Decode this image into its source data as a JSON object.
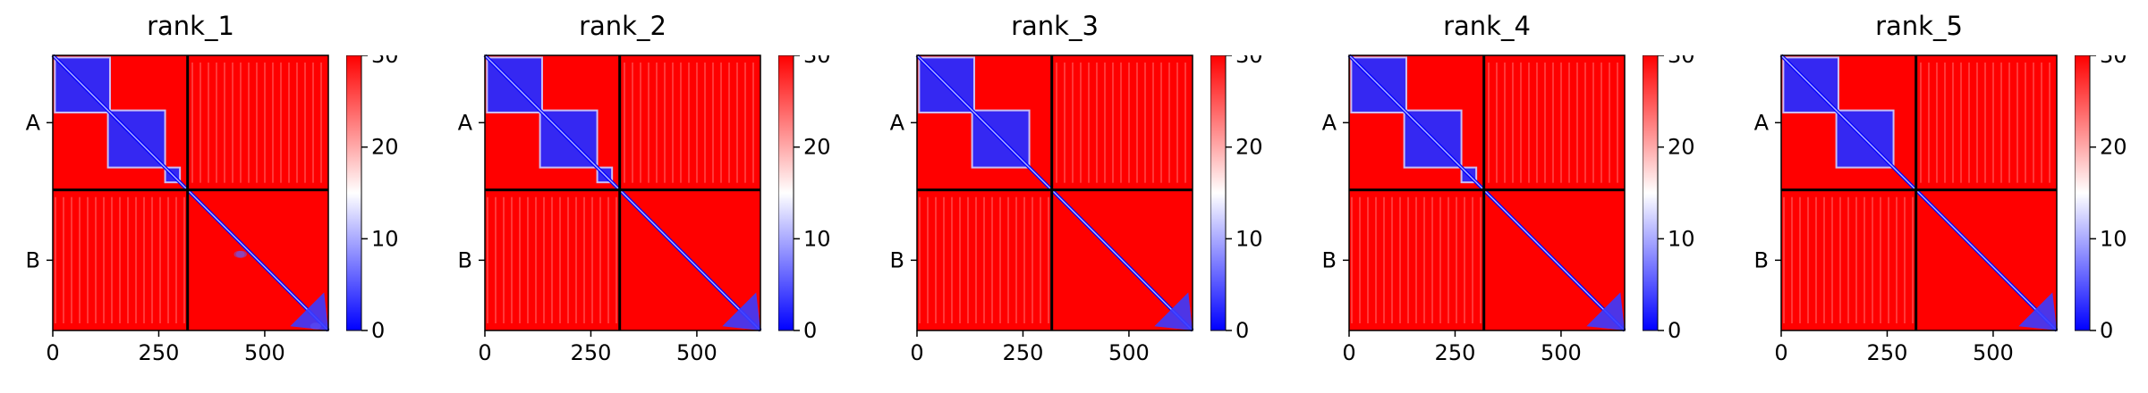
{
  "chart_data": [
    {
      "type": "heatmap",
      "title": "rank_1",
      "x_ticks": [
        0,
        250,
        500
      ],
      "y_tick_labels": [
        "A",
        "B"
      ],
      "chain_boundary": 318,
      "length": 650,
      "colorbar": {
        "min": 0,
        "max": 30,
        "ticks": [
          0,
          10,
          20,
          30
        ]
      },
      "colormap": [
        "#0000ff",
        "#ffffff",
        "#ff0000"
      ],
      "confident_blocks": [
        [
          5,
          135
        ],
        [
          130,
          265
        ],
        [
          265,
          300
        ]
      ],
      "offdiag_blobs": [
        [
          430,
          450,
          0.45
        ],
        [
          600,
          640,
          0.35
        ],
        [
          430,
          460,
          0.5
        ]
      ]
    },
    {
      "type": "heatmap",
      "title": "rank_2",
      "x_ticks": [
        0,
        250,
        500
      ],
      "y_tick_labels": [
        "A",
        "B"
      ],
      "chain_boundary": 318,
      "length": 650,
      "colorbar": {
        "min": 0,
        "max": 30,
        "ticks": [
          0,
          10,
          20,
          30
        ]
      },
      "colormap": [
        "#0000ff",
        "#ffffff",
        "#ff0000"
      ],
      "confident_blocks": [
        [
          5,
          135
        ],
        [
          130,
          265
        ],
        [
          265,
          300
        ]
      ],
      "offdiag_blobs": []
    },
    {
      "type": "heatmap",
      "title": "rank_3",
      "x_ticks": [
        0,
        250,
        500
      ],
      "y_tick_labels": [
        "A",
        "B"
      ],
      "chain_boundary": 318,
      "length": 650,
      "colorbar": {
        "min": 0,
        "max": 30,
        "ticks": [
          0,
          10,
          20,
          30
        ]
      },
      "colormap": [
        "#0000ff",
        "#ffffff",
        "#ff0000"
      ],
      "confident_blocks": [
        [
          5,
          135
        ],
        [
          130,
          265
        ]
      ],
      "offdiag_blobs": []
    },
    {
      "type": "heatmap",
      "title": "rank_4",
      "x_ticks": [
        0,
        250,
        500
      ],
      "y_tick_labels": [
        "A",
        "B"
      ],
      "chain_boundary": 318,
      "length": 650,
      "colorbar": {
        "min": 0,
        "max": 30,
        "ticks": [
          0,
          10,
          20,
          30
        ]
      },
      "colormap": [
        "#0000ff",
        "#ffffff",
        "#ff0000"
      ],
      "confident_blocks": [
        [
          5,
          135
        ],
        [
          130,
          265
        ],
        [
          265,
          300
        ]
      ],
      "offdiag_blobs": []
    },
    {
      "type": "heatmap",
      "title": "rank_5",
      "x_ticks": [
        0,
        250,
        500
      ],
      "y_tick_labels": [
        "A",
        "B"
      ],
      "chain_boundary": 318,
      "length": 650,
      "colorbar": {
        "min": 0,
        "max": 30,
        "ticks": [
          0,
          10,
          20,
          30
        ]
      },
      "colormap": [
        "#0000ff",
        "#ffffff",
        "#ff0000"
      ],
      "confident_blocks": [
        [
          5,
          135
        ],
        [
          130,
          265
        ]
      ],
      "offdiag_blobs": []
    }
  ]
}
